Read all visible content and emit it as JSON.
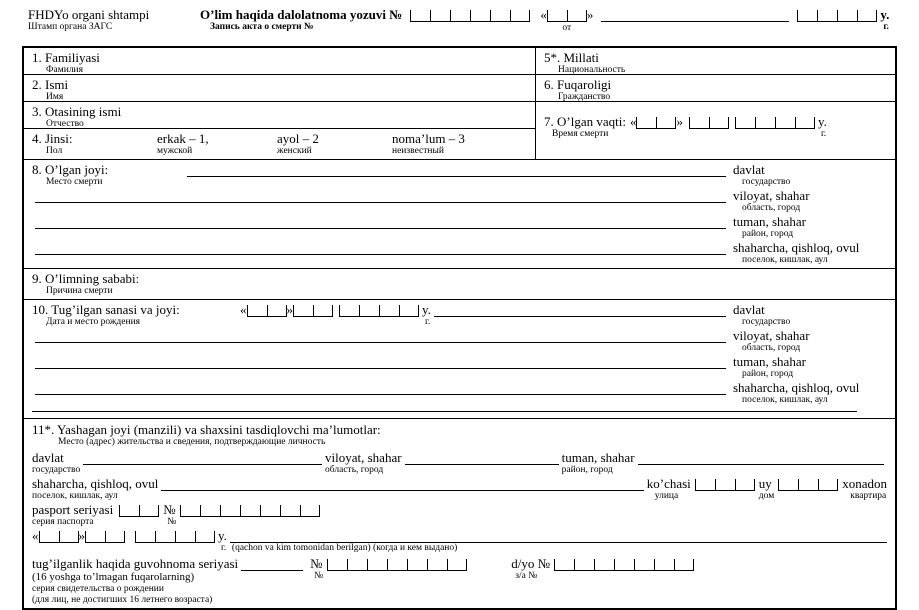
{
  "header": {
    "stamp_uz": "FHDYo organi shtampi",
    "stamp_ru": "Штамп органа ЗАГС",
    "title_uz": "O’lim haqida dalolatnoma yozuvi №",
    "title_ru": "Запись акта о смерти №",
    "from": "от",
    "year_uz": "y.",
    "year_ru": "г."
  },
  "person": {
    "f1_uz": "1. Familiyasi",
    "f1_ru": "Фамилия",
    "f2_uz": "2. Ismi",
    "f2_ru": "Имя",
    "f3_uz": "3. Otasining ismi",
    "f3_ru": "Отчество",
    "f4_uz": "4. Jinsi:",
    "f4_ru": "Пол",
    "f4_opt1_uz": "erkak – 1,",
    "f4_opt1_ru": "мужской",
    "f4_opt2_uz": "ayol – 2",
    "f4_opt2_ru": "женский",
    "f4_opt3_uz": "noma’lum – 3",
    "f4_opt3_ru": "неизвестный",
    "f5_uz": "5*. Millati",
    "f5_ru": "Национальность",
    "f6_uz": "6. Fuqaroligi",
    "f6_ru": "Гражданство",
    "f7_uz": "7. O’lgan vaqti:",
    "f7_ru": "Время смерти",
    "year_uz": "y.",
    "year_ru": "г."
  },
  "death_place": {
    "label_uz": "8. O’lgan joyi:",
    "label_ru": "Место смерти"
  },
  "location_labels": [
    {
      "uz": "davlat",
      "ru": "государство"
    },
    {
      "uz": "viloyat, shahar",
      "ru": "область, город"
    },
    {
      "uz": "tuman, shahar",
      "ru": "район, город"
    },
    {
      "uz": "shaharcha, qishloq, ovul",
      "ru": "поселок, кишлак, аул"
    }
  ],
  "death_cause": {
    "label_uz": "9. O’limning sababi:",
    "label_ru": "Причина смерти"
  },
  "birth": {
    "label_uz": "10. Tug’ilgan sanasi va joyi:",
    "label_ru": "Дата и место рождения",
    "year_uz": "y.",
    "year_ru": "г."
  },
  "residence": {
    "label_uz": "11*. Yashagan joyi (manzili) va shaxsini tasdiqlovchi ma’lumotlar:",
    "label_ru": "Место (адрес) жительства и сведения, подтверждающие личность",
    "street_uz": "ko’chasi",
    "street_ru": "улица",
    "house_uz": "uy",
    "house_ru": "дом",
    "apt_uz": "xonadon",
    "apt_ru": "квартира",
    "passport_uz": "pasport seriyasi",
    "passport_ru": "серия паспорта",
    "no_sign": "№",
    "year_uz": "y.",
    "year_ru": "г.",
    "issued_note": "(qachon va kim tomonidan berilgan) (когда и кем выдано)",
    "cert_uz": "tug’ilganlik haqida guvohnoma seriyasi",
    "cert_sub1": "(16 yoshga to’lmagan fuqarolarning)",
    "cert_sub2": "серия свидетельства о рождении",
    "cert_sub3": "(для лиц, не достигших 16 летнего возраста)",
    "dyo_uz": "d/yo №",
    "dyo_ru": "з/а №"
  },
  "boxes": {
    "record_no": 6,
    "day": 2,
    "month": 2,
    "year": 4,
    "passport_series": 2,
    "passport_no": 7,
    "street": 3,
    "house": 3,
    "cert_no": 7,
    "dyo_no": 7
  }
}
